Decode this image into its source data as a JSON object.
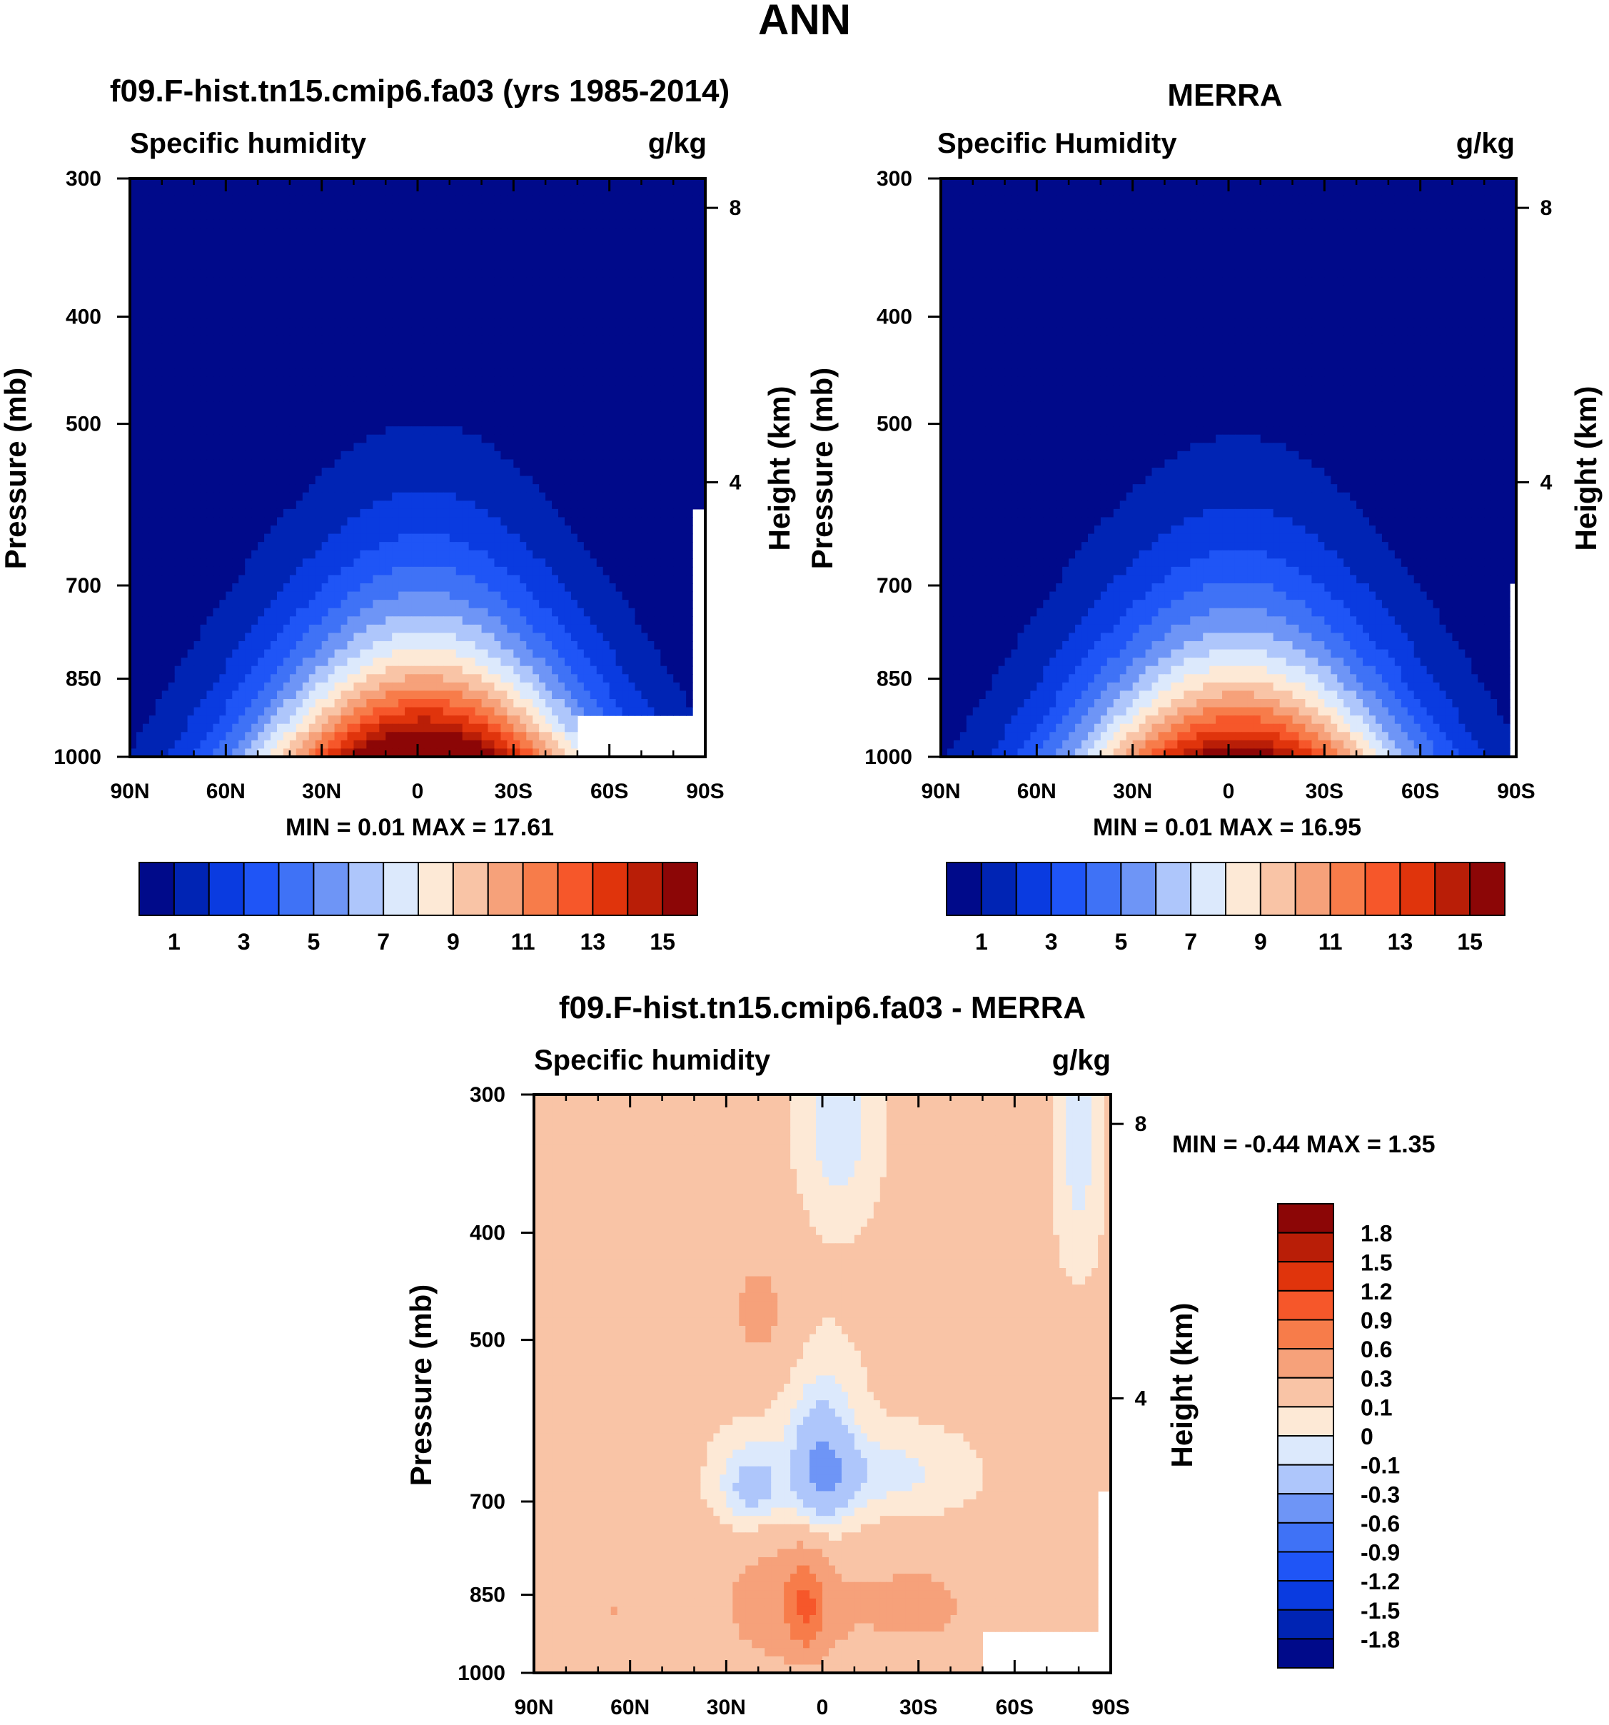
{
  "page": {
    "title": "ANN"
  },
  "colors": {
    "blue_scale": [
      "#000a8a",
      "#0024b4",
      "#0a3be0",
      "#1f55f6",
      "#3f72f6",
      "#6e95f6",
      "#aec6fb",
      "#dce9fc"
    ],
    "red_scale": [
      "#fde9d6",
      "#f9c4a6",
      "#f6a17a",
      "#f77c4a",
      "#f6572a",
      "#e0340c",
      "#b91e07",
      "#8c0606"
    ]
  },
  "chart_data": [
    {
      "type": "contour",
      "title": "f09.F-hist.tn15.cmip6.fa03 (yrs 1985-2014)",
      "left_title": "Specific humidity",
      "right_title": "g/kg",
      "ylabel": "Pressure (mb)",
      "ylabel_right": "Height (km)",
      "x_ticks": [
        "90N",
        "60N",
        "30N",
        "0",
        "30S",
        "60S",
        "90S"
      ],
      "x_values": [
        90,
        60,
        30,
        0,
        -30,
        -60,
        -90
      ],
      "y_ticks": [
        "300",
        "400",
        "500",
        "700",
        "850",
        "1000"
      ],
      "y_values": [
        300,
        400,
        500,
        700,
        850,
        1000
      ],
      "height_ticks": [
        "8",
        "4"
      ],
      "height_values": [
        8,
        4
      ],
      "ylim": [
        1000,
        300
      ],
      "minmax_text": "MIN =   0.01  MAX =  17.61",
      "min": 0.01,
      "max": 17.61,
      "levels": [
        1,
        2,
        3,
        4,
        5,
        6,
        7,
        8,
        9,
        10,
        11,
        12,
        13,
        14,
        15
      ],
      "colorbar_labels": [
        "1",
        "3",
        "5",
        "7",
        "9",
        "11",
        "13",
        "15"
      ],
      "colorbar_values": [
        1,
        3,
        5,
        7,
        9,
        11,
        13,
        15
      ]
    },
    {
      "type": "contour",
      "title": "MERRA",
      "left_title": "Specific Humidity",
      "right_title": "g/kg",
      "ylabel": "Pressure (mb)",
      "ylabel_right": "Height (km)",
      "x_ticks": [
        "90N",
        "60N",
        "30N",
        "0",
        "30S",
        "60S",
        "90S"
      ],
      "x_values": [
        90,
        60,
        30,
        0,
        -30,
        -60,
        -90
      ],
      "y_ticks": [
        "300",
        "400",
        "500",
        "700",
        "850",
        "1000"
      ],
      "y_values": [
        300,
        400,
        500,
        700,
        850,
        1000
      ],
      "height_ticks": [
        "8",
        "4"
      ],
      "height_values": [
        8,
        4
      ],
      "ylim": [
        1000,
        300
      ],
      "minmax_text": "MIN =   0.01  MAX =  16.95",
      "min": 0.01,
      "max": 16.95,
      "levels": [
        1,
        2,
        3,
        4,
        5,
        6,
        7,
        8,
        9,
        10,
        11,
        12,
        13,
        14,
        15
      ],
      "colorbar_labels": [
        "1",
        "3",
        "5",
        "7",
        "9",
        "11",
        "13",
        "15"
      ],
      "colorbar_values": [
        1,
        3,
        5,
        7,
        9,
        11,
        13,
        15
      ]
    },
    {
      "type": "contour",
      "title": "f09.F-hist.tn15.cmip6.fa03 - MERRA",
      "left_title": "Specific humidity",
      "right_title": "g/kg",
      "ylabel": "Pressure (mb)",
      "ylabel_right": "Height (km)",
      "x_ticks": [
        "90N",
        "60N",
        "30N",
        "0",
        "30S",
        "60S",
        "90S"
      ],
      "x_values": [
        90,
        60,
        30,
        0,
        -30,
        -60,
        -90
      ],
      "y_ticks": [
        "300",
        "400",
        "500",
        "700",
        "850",
        "1000"
      ],
      "y_values": [
        300,
        400,
        500,
        700,
        850,
        1000
      ],
      "height_ticks": [
        "8",
        "4"
      ],
      "height_values": [
        8,
        4
      ],
      "ylim": [
        1000,
        300
      ],
      "minmax_text": "MIN =  -0.44  MAX =   1.35",
      "min": -0.44,
      "max": 1.35,
      "levels": [
        -1.8,
        -1.5,
        -1.2,
        -0.9,
        -0.6,
        -0.3,
        -0.1,
        0,
        0.1,
        0.3,
        0.6,
        0.9,
        1.2,
        1.5,
        1.8
      ],
      "colorbar_labels": [
        "1.8",
        "1.5",
        "1.2",
        "0.9",
        "0.6",
        "0.3",
        "0.1",
        "0",
        "-0.1",
        "-0.3",
        "-0.6",
        "-0.9",
        "-1.2",
        "-1.5",
        "-1.8"
      ],
      "colorbar_values": [
        1.8,
        1.5,
        1.2,
        0.9,
        0.6,
        0.3,
        0.1,
        0,
        -0.1,
        -0.3,
        -0.6,
        -0.9,
        -1.2,
        -1.5,
        -1.8
      ]
    }
  ]
}
